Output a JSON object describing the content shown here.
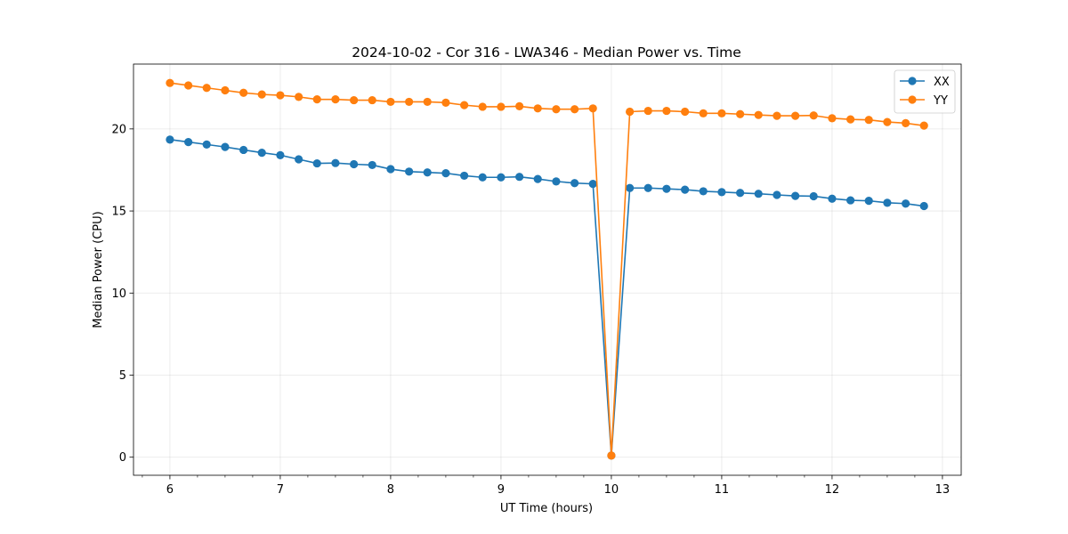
{
  "chart_data": {
    "type": "line",
    "title": "2024-10-02 - Cor 316 - LWA346 - Median Power vs. Time",
    "xlabel": "UT Time (hours)",
    "ylabel": "Median Power (CPU)",
    "xlim": [
      5.67,
      13.17
    ],
    "ylim": [
      -1.1,
      23.95
    ],
    "xticks": [
      6,
      7,
      8,
      9,
      10,
      11,
      12,
      13
    ],
    "yticks": [
      0,
      5,
      10,
      15,
      20
    ],
    "grid": true,
    "legend_position": "top-right",
    "x": [
      6.0,
      6.167,
      6.333,
      6.5,
      6.667,
      6.833,
      7.0,
      7.167,
      7.333,
      7.5,
      7.667,
      7.833,
      8.0,
      8.167,
      8.333,
      8.5,
      8.667,
      8.833,
      9.0,
      9.167,
      9.333,
      9.5,
      9.667,
      9.833,
      10.0,
      10.167,
      10.333,
      10.5,
      10.667,
      10.833,
      11.0,
      11.167,
      11.333,
      11.5,
      11.667,
      11.833,
      12.0,
      12.167,
      12.333,
      12.5,
      12.667,
      12.833
    ],
    "series": [
      {
        "name": "XX",
        "color": "#1f77b4",
        "values": [
          19.35,
          19.2,
          19.05,
          18.9,
          18.72,
          18.55,
          18.4,
          18.15,
          17.9,
          17.92,
          17.85,
          17.8,
          17.55,
          17.4,
          17.35,
          17.3,
          17.15,
          17.05,
          17.05,
          17.08,
          16.95,
          16.8,
          16.7,
          16.65,
          0.1,
          16.4,
          16.4,
          16.35,
          16.3,
          16.2,
          16.15,
          16.1,
          16.05,
          15.98,
          15.92,
          15.9,
          15.75,
          15.65,
          15.62,
          15.5,
          15.45,
          15.3
        ]
      },
      {
        "name": "YY",
        "color": "#ff7f0e",
        "values": [
          22.8,
          22.65,
          22.5,
          22.35,
          22.2,
          22.1,
          22.05,
          21.95,
          21.8,
          21.8,
          21.75,
          21.75,
          21.65,
          21.65,
          21.65,
          21.6,
          21.45,
          21.35,
          21.35,
          21.38,
          21.25,
          21.2,
          21.2,
          21.25,
          0.1,
          21.05,
          21.1,
          21.1,
          21.05,
          20.95,
          20.95,
          20.9,
          20.85,
          20.8,
          20.8,
          20.82,
          20.65,
          20.58,
          20.55,
          20.42,
          20.35,
          20.2
        ]
      }
    ]
  }
}
